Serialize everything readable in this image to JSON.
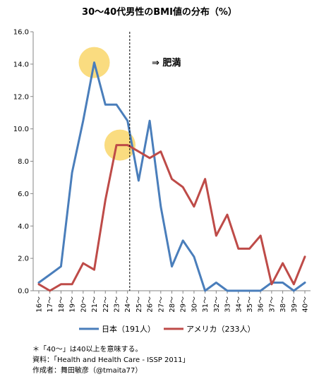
{
  "chart_data": {
    "type": "line",
    "title": "30～40代男性のBMI値の分布（%）",
    "xlabel": "",
    "ylabel": "",
    "ylim": [
      0,
      16
    ],
    "yticks": [
      "0.0",
      "2.0",
      "4.0",
      "6.0",
      "8.0",
      "10.0",
      "12.0",
      "14.0",
      "16.0"
    ],
    "categories": [
      "16～",
      "17～",
      "18～",
      "19～",
      "20～",
      "21～",
      "22～",
      "23～",
      "24～",
      "25～",
      "26～",
      "27～",
      "28～",
      "29～",
      "30～",
      "31～",
      "32～",
      "33～",
      "34～",
      "35～",
      "36～",
      "37～",
      "38～",
      "39～",
      "40～"
    ],
    "series": [
      {
        "name": "日本（191人）",
        "color": "#4a7ebb",
        "values": [
          0.5,
          1.0,
          1.5,
          7.3,
          10.5,
          14.1,
          11.5,
          11.5,
          10.5,
          6.8,
          10.5,
          5.2,
          1.5,
          3.1,
          2.1,
          0.0,
          0.5,
          0.0,
          0.0,
          0.0,
          0.0,
          0.5,
          0.5,
          0.0,
          0.5
        ]
      },
      {
        "name": "アメリカ（233人）",
        "color": "#be4b48",
        "values": [
          0.4,
          0.0,
          0.4,
          0.4,
          1.7,
          1.3,
          5.6,
          9.0,
          9.0,
          8.6,
          8.2,
          8.6,
          6.9,
          6.4,
          5.2,
          6.9,
          3.4,
          4.7,
          2.6,
          2.6,
          3.4,
          0.4,
          1.7,
          0.4,
          2.1
        ]
      }
    ],
    "annotation": "⇒ 肥満",
    "divider_after_category": "24～",
    "highlights": [
      {
        "series": 0,
        "category": "21～"
      },
      {
        "series": 1,
        "category": "23～"
      }
    ],
    "highlight_color": "#f9d66a",
    "grid": false,
    "legend_position": "bottom"
  },
  "notes": [
    "＊「40～」は40以上を意味する。",
    "資料：「Health and Health Care - ISSP 2011」",
    "作成者：舞田敏彦（@tmaita77）"
  ]
}
